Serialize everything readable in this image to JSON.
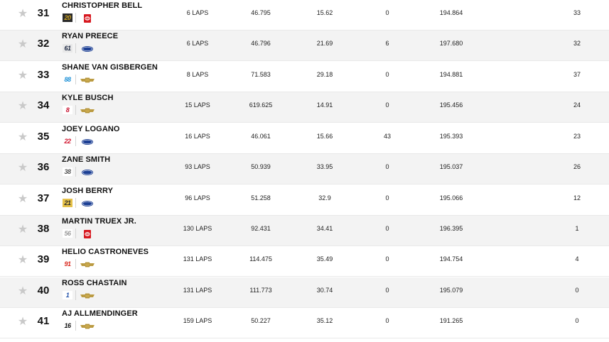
{
  "star_glyph": "★",
  "rows": [
    {
      "pos": "31",
      "driver": "CHRISTOPHER BELL",
      "car": "20",
      "car_fg": "#caa020",
      "car_bg": "#2b2b2b",
      "manufacturer": "toyota",
      "laps": "6 LAPS",
      "time": "46.795",
      "gap": "15.62",
      "led": "0",
      "speed": "194.864",
      "pts": "33"
    },
    {
      "pos": "32",
      "driver": "RYAN PREECE",
      "car": "61",
      "car_fg": "#1f2a44",
      "car_bg": "#e8e8e8",
      "manufacturer": "ford",
      "laps": "6 LAPS",
      "time": "46.796",
      "gap": "21.69",
      "led": "6",
      "speed": "197.680",
      "pts": "32"
    },
    {
      "pos": "33",
      "driver": "SHANE VAN GISBERGEN",
      "car": "88",
      "car_fg": "#1a8fd6",
      "car_bg": "#ffffff",
      "manufacturer": "chevrolet",
      "laps": "8 LAPS",
      "time": "71.583",
      "gap": "29.18",
      "led": "0",
      "speed": "194.881",
      "pts": "37"
    },
    {
      "pos": "34",
      "driver": "KYLE BUSCH",
      "car": "8",
      "car_fg": "#c8102e",
      "car_bg": "#ffffff",
      "manufacturer": "chevrolet",
      "laps": "15 LAPS",
      "time": "619.625",
      "gap": "14.91",
      "led": "0",
      "speed": "195.456",
      "pts": "24"
    },
    {
      "pos": "35",
      "driver": "JOEY LOGANO",
      "car": "22",
      "car_fg": "#d0102a",
      "car_bg": "#ffffff",
      "manufacturer": "ford",
      "laps": "16 LAPS",
      "time": "46.061",
      "gap": "15.66",
      "led": "43",
      "speed": "195.393",
      "pts": "23"
    },
    {
      "pos": "36",
      "driver": "ZANE SMITH",
      "car": "38",
      "car_fg": "#555555",
      "car_bg": "#ffffff",
      "manufacturer": "ford",
      "laps": "93 LAPS",
      "time": "50.939",
      "gap": "33.95",
      "led": "0",
      "speed": "195.037",
      "pts": "26"
    },
    {
      "pos": "37",
      "driver": "JOSH BERRY",
      "car": "21",
      "car_fg": "#2b2b2b",
      "car_bg": "#e6c24a",
      "manufacturer": "ford",
      "laps": "96 LAPS",
      "time": "51.258",
      "gap": "32.9",
      "led": "0",
      "speed": "195.066",
      "pts": "12"
    },
    {
      "pos": "38",
      "driver": "MARTIN TRUEX JR.",
      "car": "56",
      "car_fg": "#9a9a9a",
      "car_bg": "#ffffff",
      "manufacturer": "toyota",
      "laps": "130 LAPS",
      "time": "92.431",
      "gap": "34.41",
      "led": "0",
      "speed": "196.395",
      "pts": "1"
    },
    {
      "pos": "39",
      "driver": "HELIO CASTRONEVES",
      "car": "91",
      "car_fg": "#d9261c",
      "car_bg": "#ffffff",
      "manufacturer": "chevrolet",
      "laps": "131 LAPS",
      "time": "114.475",
      "gap": "35.49",
      "led": "0",
      "speed": "194.754",
      "pts": "4"
    },
    {
      "pos": "40",
      "driver": "ROSS CHASTAIN",
      "car": "1",
      "car_fg": "#1f4fa8",
      "car_bg": "#ffffff",
      "manufacturer": "chevrolet",
      "laps": "131 LAPS",
      "time": "111.773",
      "gap": "30.74",
      "led": "0",
      "speed": "195.079",
      "pts": "0"
    },
    {
      "pos": "41",
      "driver": "AJ ALLMENDINGER",
      "car": "16",
      "car_fg": "#111111",
      "car_bg": "#ffffff",
      "manufacturer": "chevrolet",
      "laps": "159 LAPS",
      "time": "50.227",
      "gap": "35.12",
      "led": "0",
      "speed": "191.265",
      "pts": "0"
    }
  ],
  "colors": {
    "row_shade": "#f3f3f3",
    "row_plain": "#ffffff",
    "star_inactive": "#c9c9c9",
    "toyota_red": "#d71920",
    "ford_blue": "#1c3f94",
    "chevrolet_gold": "#c9a84c"
  }
}
